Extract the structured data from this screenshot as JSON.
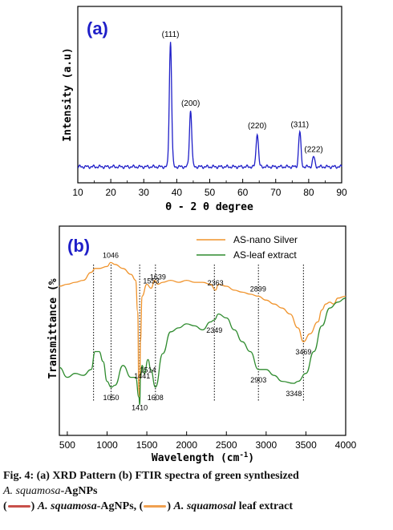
{
  "chart_data": [
    {
      "type": "line",
      "panel_label": "(a)",
      "xlabel": "θ - 2 θ degree",
      "ylabel": "Intensity (a.u)",
      "xlim": [
        10,
        90
      ],
      "xticks": [
        10,
        20,
        30,
        40,
        50,
        60,
        70,
        80,
        90
      ],
      "line_color": "#1f1fc8",
      "baseline": 0.08,
      "peaks": [
        {
          "label": "(111)",
          "x": 38.1,
          "y": 1.0,
          "w": 0.35
        },
        {
          "label": "(200)",
          "x": 44.2,
          "y": 0.45,
          "w": 0.35
        },
        {
          "label": "(220)",
          "x": 64.4,
          "y": 0.27,
          "w": 0.35
        },
        {
          "label": "(311)",
          "x": 77.3,
          "y": 0.28,
          "w": 0.35
        },
        {
          "label": "(222)",
          "x": 81.5,
          "y": 0.08,
          "w": 0.35
        }
      ]
    },
    {
      "type": "line",
      "panel_label": "(b)",
      "xlabel": "Wavelength (cm",
      "xlabel_sup": "-1",
      "xlabel_end": ")",
      "ylabel": "Transmittance (%",
      "xlim": [
        400,
        4000
      ],
      "xticks": [
        500,
        1000,
        1500,
        2000,
        2500,
        3000,
        3500,
        4000
      ],
      "legend_position": "top-right",
      "series": [
        {
          "name": "AS-nano Silver",
          "color": "#f0932b",
          "x": [
            400,
            500,
            600,
            700,
            800,
            850,
            900,
            1000,
            1046,
            1100,
            1200,
            1300,
            1360,
            1385,
            1400,
            1410,
            1420,
            1440,
            1500,
            1553,
            1600,
            1639,
            1700,
            1800,
            1900,
            2000,
            2100,
            2200,
            2300,
            2363,
            2400,
            2500,
            2600,
            2700,
            2800,
            2899,
            3000,
            3100,
            3200,
            3300,
            3400,
            3469,
            3550,
            3650,
            3700,
            3750,
            3800,
            3850,
            3900,
            4000
          ],
          "y": [
            68,
            69,
            70,
            71,
            75,
            77,
            77,
            78,
            80,
            79,
            77,
            74,
            71,
            55,
            15,
            12,
            40,
            63,
            69,
            67,
            71,
            69,
            70,
            71,
            70,
            71,
            70,
            70,
            69,
            66,
            69,
            68,
            66,
            65,
            64,
            63,
            61,
            59,
            57,
            54,
            47,
            40,
            44,
            50,
            56,
            59,
            60,
            59,
            62,
            63
          ]
        },
        {
          "name": "AS-leaf extract",
          "color": "#2e8b2e",
          "x": [
            400,
            500,
            600,
            700,
            800,
            850,
            900,
            950,
            1000,
            1050,
            1100,
            1200,
            1300,
            1360,
            1400,
            1410,
            1420,
            1441,
            1470,
            1514,
            1550,
            1608,
            1700,
            1800,
            1900,
            2000,
            2100,
            2200,
            2300,
            2349,
            2400,
            2500,
            2600,
            2700,
            2800,
            2903,
            3000,
            3100,
            3200,
            3348,
            3400,
            3500,
            3600,
            3700,
            3800,
            3900,
            4000
          ],
          "y": [
            27,
            22,
            24,
            23,
            26,
            35,
            35,
            30,
            20,
            17,
            18,
            28,
            22,
            22,
            12,
            8,
            22,
            28,
            24,
            31,
            26,
            17,
            34,
            45,
            47,
            49,
            48,
            46,
            50,
            51,
            54,
            52,
            46,
            40,
            35,
            26,
            26,
            23,
            20,
            19,
            20,
            24,
            35,
            48,
            57,
            60,
            62
          ]
        }
      ],
      "annotations": [
        {
          "label": "1046",
          "x": 1046,
          "pos": "above"
        },
        {
          "label": "1553",
          "x": 1553,
          "pos": "above"
        },
        {
          "label": "1639",
          "x": 1639,
          "pos": "above"
        },
        {
          "label": "2363",
          "x": 2363,
          "pos": "above"
        },
        {
          "label": "2899",
          "x": 2899,
          "pos": "above"
        },
        {
          "label": "3469",
          "x": 3469,
          "pos": "below"
        },
        {
          "label": "1410",
          "x": 1410,
          "pos": "below"
        },
        {
          "label": "2349",
          "x": 2349,
          "pos": "below"
        },
        {
          "label": "1050",
          "x": 1050,
          "pos": "below"
        },
        {
          "label": "1441",
          "x": 1441,
          "pos": "below"
        },
        {
          "label": "1514",
          "x": 1514,
          "pos": "below"
        },
        {
          "label": "1608",
          "x": 1608,
          "pos": "below"
        },
        {
          "label": "2903",
          "x": 2903,
          "pos": "below"
        },
        {
          "label": "3348",
          "x": 3348,
          "pos": "below"
        }
      ],
      "dotted_lines": [
        830,
        1050,
        1410,
        1608,
        2349,
        2903,
        3469
      ]
    }
  ],
  "caption": {
    "line1": "Fig. 4: (a) XRD Pattern (b) FTIR spectra of green synthesized",
    "line2_italic": "A. squamosa",
    "line2_rest": "-AgNPs",
    "line3_a_italic": "A. squamosa",
    "line3_a_rest": "-AgNPs, (",
    "line3_b_italic": "A. squamosal",
    "line3_b_rest": " leaf extract",
    "swatch1_color": "#c8504a",
    "swatch2_color": "#f0a050"
  }
}
